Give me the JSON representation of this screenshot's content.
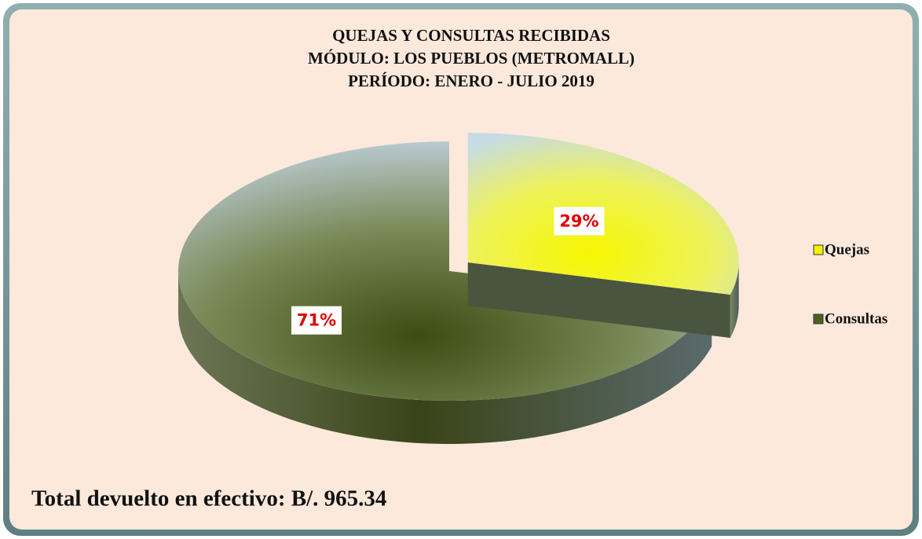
{
  "chart_data": {
    "type": "pie3d",
    "title": [
      "QUEJAS Y CONSULTAS RECIBIDAS",
      "MÓDULO: LOS PUEBLOS (METROMALL)",
      "PERÍODO: ENERO - JULIO 2019"
    ],
    "categories": [
      "Quejas",
      "Consultas"
    ],
    "values": [
      29,
      71
    ],
    "value_labels": [
      "29%",
      "71%"
    ],
    "colors": [
      "#f2f200",
      "#4f5f1e"
    ],
    "explode": [
      true,
      false
    ],
    "legend": "right",
    "annotation": "Total devuelto en efectivo: B/. 965.34"
  }
}
